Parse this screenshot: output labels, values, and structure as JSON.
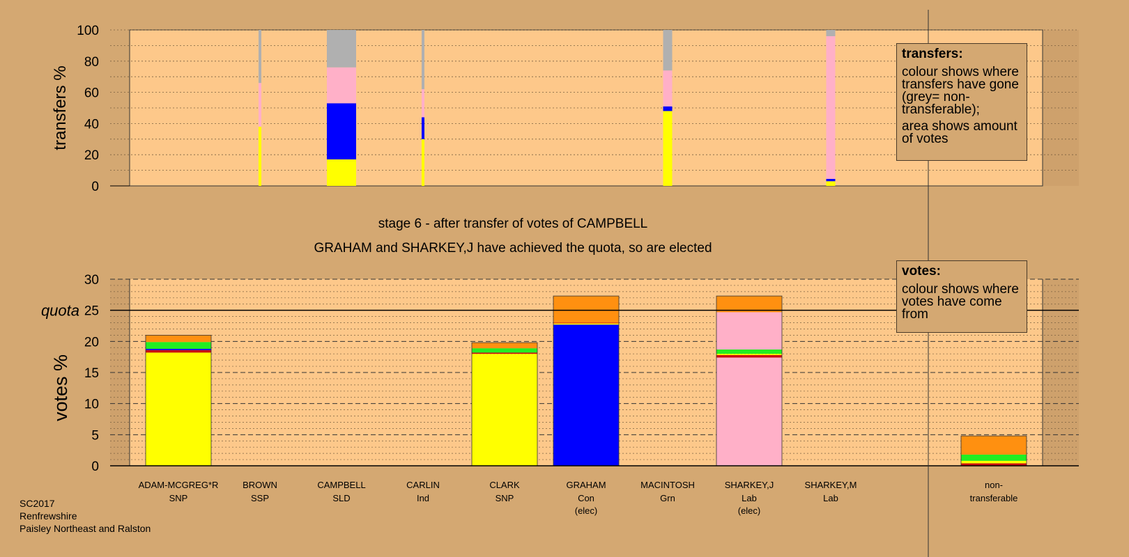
{
  "top_chart": {
    "ylabel": "transfers %",
    "yticks": [
      "0",
      "20",
      "40",
      "60",
      "80",
      "100"
    ]
  },
  "headline": {
    "stage": "stage 6 - after transfer of votes of CAMPBELL",
    "status": "GRAHAM and SHARKEY,J have achieved the quota, so are elected"
  },
  "bottom_chart": {
    "ylabel": "votes %",
    "quota_label": "quota",
    "yticks": [
      "0",
      "5",
      "10",
      "15",
      "20",
      "25",
      "30"
    ]
  },
  "legend_transfers": {
    "title": "transfers:",
    "line1": "colour shows where transfers have gone (grey= non-transferable);",
    "line2": "area shows amount of votes"
  },
  "legend_votes": {
    "title": "votes:",
    "line1": "colour shows where votes have come from"
  },
  "candidates": [
    {
      "name": "ADAM-MCGREG*R",
      "party": "SNP",
      "note": ""
    },
    {
      "name": "BROWN",
      "party": "SSP",
      "note": ""
    },
    {
      "name": "CAMPBELL",
      "party": "SLD",
      "note": ""
    },
    {
      "name": "CARLIN",
      "party": "Ind",
      "note": ""
    },
    {
      "name": "CLARK",
      "party": "SNP",
      "note": ""
    },
    {
      "name": "GRAHAM",
      "party": "Con",
      "note": "(elec)"
    },
    {
      "name": "MACINTOSH",
      "party": "Grn",
      "note": ""
    },
    {
      "name": "SHARKEY,J",
      "party": "Lab",
      "note": "(elec)"
    },
    {
      "name": "SHARKEY,M",
      "party": "Lab",
      "note": ""
    },
    {
      "name": "non-",
      "party": "transferable",
      "note": ""
    }
  ],
  "footer": {
    "line1": "SC2017",
    "line2": "Renfrewshire",
    "line3": "Paisley Northeast and Ralston"
  },
  "colors": {
    "background": "#d4a872",
    "plot": "#fdc88a",
    "SNP": "#ffff00",
    "Con": "#0000ff",
    "Lab": "#ffb0c8",
    "Grn": "#22ee22",
    "SSP": "#c81010",
    "SLD": "#ff9010",
    "Ind": "#ff9010",
    "nontransferable": "#b0b0b0"
  },
  "chart_data": [
    {
      "type": "bar",
      "stacked": true,
      "ylabel": "transfers %",
      "ylim": [
        0,
        100
      ],
      "bars": [
        {
          "x": "BROWN",
          "width": "thin",
          "segments": [
            {
              "color": "#ffff00",
              "from": 0,
              "to": 38
            },
            {
              "color": "#ffb0c8",
              "from": 38,
              "to": 66
            },
            {
              "color": "#b0b0b0",
              "from": 66,
              "to": 100
            }
          ]
        },
        {
          "x": "CAMPBELL",
          "width": "wide",
          "segments": [
            {
              "color": "#ffff00",
              "from": 0,
              "to": 17
            },
            {
              "color": "#0000ff",
              "from": 17,
              "to": 53
            },
            {
              "color": "#ffb0c8",
              "from": 53,
              "to": 76
            },
            {
              "color": "#b0b0b0",
              "from": 76,
              "to": 100
            }
          ]
        },
        {
          "x": "CARLIN",
          "width": "thin",
          "segments": [
            {
              "color": "#ffff00",
              "from": 0,
              "to": 30
            },
            {
              "color": "#0000ff",
              "from": 30,
              "to": 44
            },
            {
              "color": "#ffb0c8",
              "from": 44,
              "to": 62
            },
            {
              "color": "#b0b0b0",
              "from": 62,
              "to": 100
            }
          ]
        },
        {
          "x": "MACINTOSH",
          "width": "narrow",
          "segments": [
            {
              "color": "#ffff00",
              "from": 0,
              "to": 48
            },
            {
              "color": "#0000ff",
              "from": 48,
              "to": 51
            },
            {
              "color": "#ffb0c8",
              "from": 51,
              "to": 74
            },
            {
              "color": "#b0b0b0",
              "from": 74,
              "to": 100
            }
          ]
        },
        {
          "x": "SHARKEY,M",
          "width": "narrow",
          "segments": [
            {
              "color": "#ffff00",
              "from": 0,
              "to": 3
            },
            {
              "color": "#0000ff",
              "from": 3,
              "to": 4.5
            },
            {
              "color": "#ffb0c8",
              "from": 4.5,
              "to": 96
            },
            {
              "color": "#b0b0b0",
              "from": 96,
              "to": 100
            }
          ]
        }
      ]
    },
    {
      "type": "bar",
      "stacked": true,
      "ylabel": "votes %",
      "ylim": [
        0,
        30
      ],
      "quota": 25,
      "categories": [
        "ADAM-MCGREG*R",
        "BROWN",
        "CAMPBELL",
        "CARLIN",
        "CLARK",
        "GRAHAM",
        "MACINTOSH",
        "SHARKEY,J",
        "SHARKEY,M",
        "non-transferable"
      ],
      "bars": [
        {
          "x": "ADAM-MCGREG*R",
          "segments": [
            {
              "color": "#ffff00",
              "from": 0,
              "to": 18.2
            },
            {
              "color": "#c81010",
              "from": 18.2,
              "to": 18.6
            },
            {
              "color": "#0000ff",
              "from": 18.6,
              "to": 18.8
            },
            {
              "color": "#22ee22",
              "from": 18.8,
              "to": 19.9
            },
            {
              "color": "#ff9010",
              "from": 19.9,
              "to": 21.0
            }
          ]
        },
        {
          "x": "CLARK",
          "segments": [
            {
              "color": "#ffff00",
              "from": 0,
              "to": 18.0
            },
            {
              "color": "#c81010",
              "from": 18.0,
              "to": 18.2
            },
            {
              "color": "#22ee22",
              "from": 18.2,
              "to": 18.9
            },
            {
              "color": "#ff9010",
              "from": 18.9,
              "to": 19.8
            }
          ]
        },
        {
          "x": "GRAHAM",
          "segments": [
            {
              "color": "#0000ff",
              "from": 0,
              "to": 22.7
            },
            {
              "color": "#ffff00",
              "from": 22.7,
              "to": 22.9
            },
            {
              "color": "#c81010",
              "from": 22.9,
              "to": 23.0
            },
            {
              "color": "#ff9010",
              "from": 23.0,
              "to": 27.3
            }
          ]
        },
        {
          "x": "SHARKEY,J",
          "segments": [
            {
              "color": "#ffb0c8",
              "from": 0,
              "to": 17.4
            },
            {
              "color": "#c81010",
              "from": 17.4,
              "to": 17.8
            },
            {
              "color": "#ffff00",
              "from": 17.8,
              "to": 18.0
            },
            {
              "color": "#22ee22",
              "from": 18.0,
              "to": 18.7
            },
            {
              "color": "#ffb0c8",
              "from": 18.7,
              "to": 24.7
            },
            {
              "color": "#ff9010",
              "from": 24.7,
              "to": 27.3
            }
          ]
        },
        {
          "x": "non-transferable",
          "segments": [
            {
              "color": "#c81010",
              "from": 0,
              "to": 0.4
            },
            {
              "color": "#ffff00",
              "from": 0.4,
              "to": 0.8
            },
            {
              "color": "#22ee22",
              "from": 0.8,
              "to": 1.8
            },
            {
              "color": "#ff9010",
              "from": 1.8,
              "to": 4.8
            }
          ]
        }
      ]
    }
  ]
}
